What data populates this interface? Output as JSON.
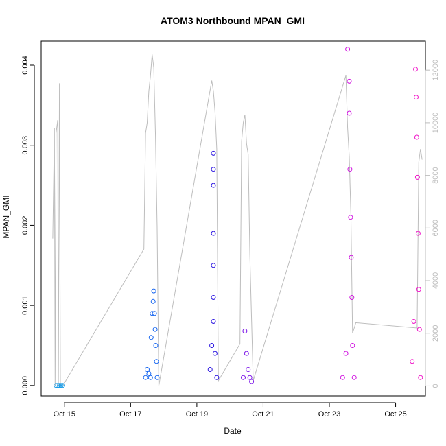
{
  "chart_data": {
    "type": "scatter",
    "title": "ATOM3 Northbound MPAN_GMI",
    "xlabel": "Date",
    "ylabel": "MPAN_GMI",
    "x_ticks": [
      "Oct 15",
      "Oct 17",
      "Oct 19",
      "Oct 21",
      "Oct 23",
      "Oct 25"
    ],
    "x_range_days": [
      14.3,
      25.9
    ],
    "ylim": [
      -0.00013,
      0.0043
    ],
    "y_ticks": [
      0.0,
      0.001,
      0.002,
      0.003,
      0.004
    ],
    "y_tick_labels": [
      "0.000",
      "0.001",
      "0.002",
      "0.003",
      "0.004"
    ],
    "y2_lim": [
      -380,
      13100
    ],
    "y2_ticks": [
      0,
      2000,
      4000,
      6000,
      8000,
      10000,
      12000
    ],
    "y2_tick_labels": [
      "0",
      "2000",
      "4000",
      "6000",
      "8000",
      "10000",
      "12000"
    ],
    "series": [
      {
        "color": "#1a9de8",
        "x": [
          14.75,
          14.8,
          14.85,
          14.9,
          14.95
        ],
        "y": [
          0.0,
          0.0,
          0.0,
          0.0,
          0.0
        ]
      },
      {
        "color": "#1565f0",
        "x": [
          17.45,
          17.5,
          17.55,
          17.6,
          17.62,
          17.65,
          17.68,
          17.7,
          17.72,
          17.74,
          17.76,
          17.78,
          17.8
        ],
        "y": [
          0.0001,
          0.0002,
          0.00015,
          0.0001,
          0.0006,
          0.0009,
          0.00105,
          0.00118,
          0.0009,
          0.0007,
          0.0005,
          0.0003,
          0.0001
        ]
      },
      {
        "color": "#2a14e0",
        "x": [
          19.4,
          19.45,
          19.5,
          19.5,
          19.5,
          19.5,
          19.5,
          19.5,
          19.5,
          19.55,
          19.6
        ],
        "y": [
          0.0002,
          0.0005,
          0.0029,
          0.0027,
          0.0025,
          0.0019,
          0.0015,
          0.0011,
          0.0008,
          0.0004,
          0.0001
        ]
      },
      {
        "color": "#7a12e8",
        "x": [
          20.4,
          20.45,
          20.5,
          20.55,
          20.6,
          20.65
        ],
        "y": [
          0.0001,
          0.00068,
          0.0004,
          0.0002,
          0.0001,
          5e-05
        ]
      },
      {
        "color": "#d012e0",
        "x": [
          23.4,
          23.5,
          23.55,
          23.6,
          23.6,
          23.62,
          23.64,
          23.66,
          23.68,
          23.7,
          23.75
        ],
        "y": [
          0.0001,
          0.0004,
          0.0042,
          0.0038,
          0.0034,
          0.0027,
          0.0021,
          0.0016,
          0.0011,
          0.0005,
          0.0001
        ]
      },
      {
        "color": "#f012c8",
        "x": [
          25.5,
          25.55,
          25.6,
          25.62,
          25.64,
          25.66,
          25.68,
          25.7,
          25.72,
          25.75
        ],
        "y": [
          0.0003,
          0.0008,
          0.00395,
          0.0036,
          0.0031,
          0.0026,
          0.0019,
          0.0012,
          0.0007,
          0.0001
        ]
      }
    ],
    "secondary_series": {
      "color": "#bdbdbd",
      "x": [
        14.65,
        14.7,
        14.72,
        14.75,
        14.8,
        14.82,
        14.85,
        14.88,
        14.95,
        17.4,
        17.45,
        17.5,
        17.55,
        17.6,
        17.65,
        17.7,
        17.75,
        17.8,
        17.85,
        19.45,
        19.5,
        19.55,
        19.6,
        19.65,
        20.3,
        20.35,
        20.4,
        20.45,
        20.5,
        20.55,
        20.6,
        20.7,
        23.5,
        23.55,
        23.6,
        23.65,
        23.7,
        23.8,
        25.65,
        25.7,
        25.75,
        25.8
      ],
      "y": [
        5600,
        9800,
        0,
        9600,
        10100,
        0,
        11500,
        0,
        0,
        5200,
        9600,
        10000,
        11200,
        11800,
        12600,
        12100,
        9500,
        6000,
        0,
        11600,
        11200,
        10400,
        9000,
        200,
        1600,
        9300,
        10000,
        10300,
        9200,
        8800,
        5000,
        200,
        11800,
        9800,
        8700,
        6500,
        2000,
        2400,
        2200,
        8500,
        9000,
        8600
      ]
    }
  }
}
